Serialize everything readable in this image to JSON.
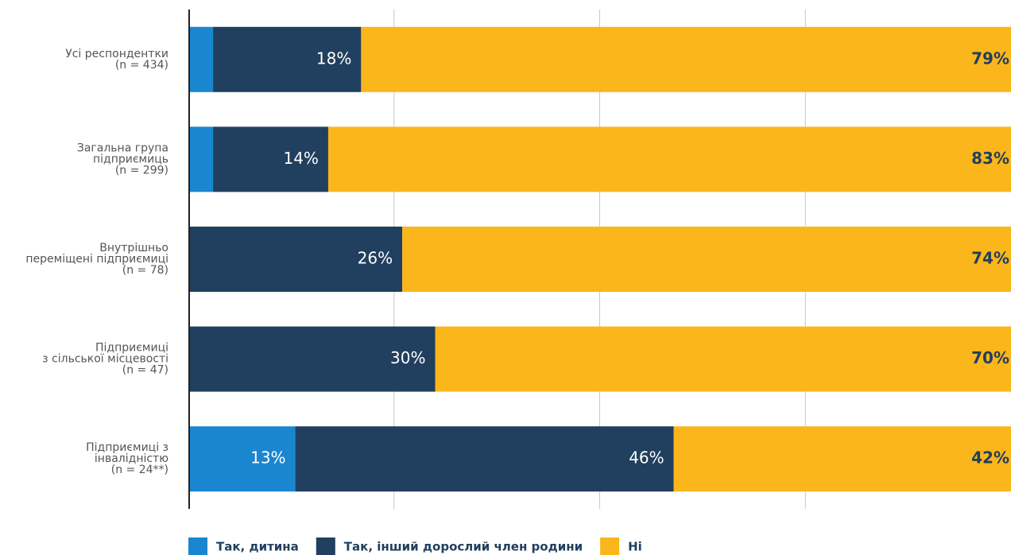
{
  "chart_data": {
    "type": "stacked_bar_horizontal",
    "categories": [
      "Усі респондентки\n(n = 434)",
      "Загальна група\nпідприємиць\n(n = 299)",
      "Внутрішньо\nпереміщені підприємиці\n(n = 78)",
      "Підприємиці\nз сільської місцевості\n(n = 47)",
      "Підприємиці з\nінвалідністю\n(n = 24**)"
    ],
    "series": [
      {
        "name": "Так, дитина",
        "color": "#1a86d0",
        "values": [
          3,
          3,
          0,
          0,
          13
        ],
        "value_labels": [
          "3%",
          "3%",
          "0%",
          "0%",
          "13%"
        ]
      },
      {
        "name": "Так, інший дорослий член родини",
        "color": "#213f5e",
        "values": [
          18,
          14,
          26,
          30,
          46
        ],
        "value_labels": [
          "18%",
          "14%",
          "26%",
          "30%",
          "46%"
        ]
      },
      {
        "name": "Ні",
        "color": "#fbb61b",
        "values": [
          79,
          83,
          74,
          70,
          42
        ],
        "value_labels": [
          "79%",
          "83%",
          "74%",
          "70%",
          "42%"
        ]
      }
    ],
    "xlim": [
      0,
      100
    ],
    "xticks": [
      25,
      50,
      75
    ],
    "grid": true,
    "legend": "bottom"
  }
}
